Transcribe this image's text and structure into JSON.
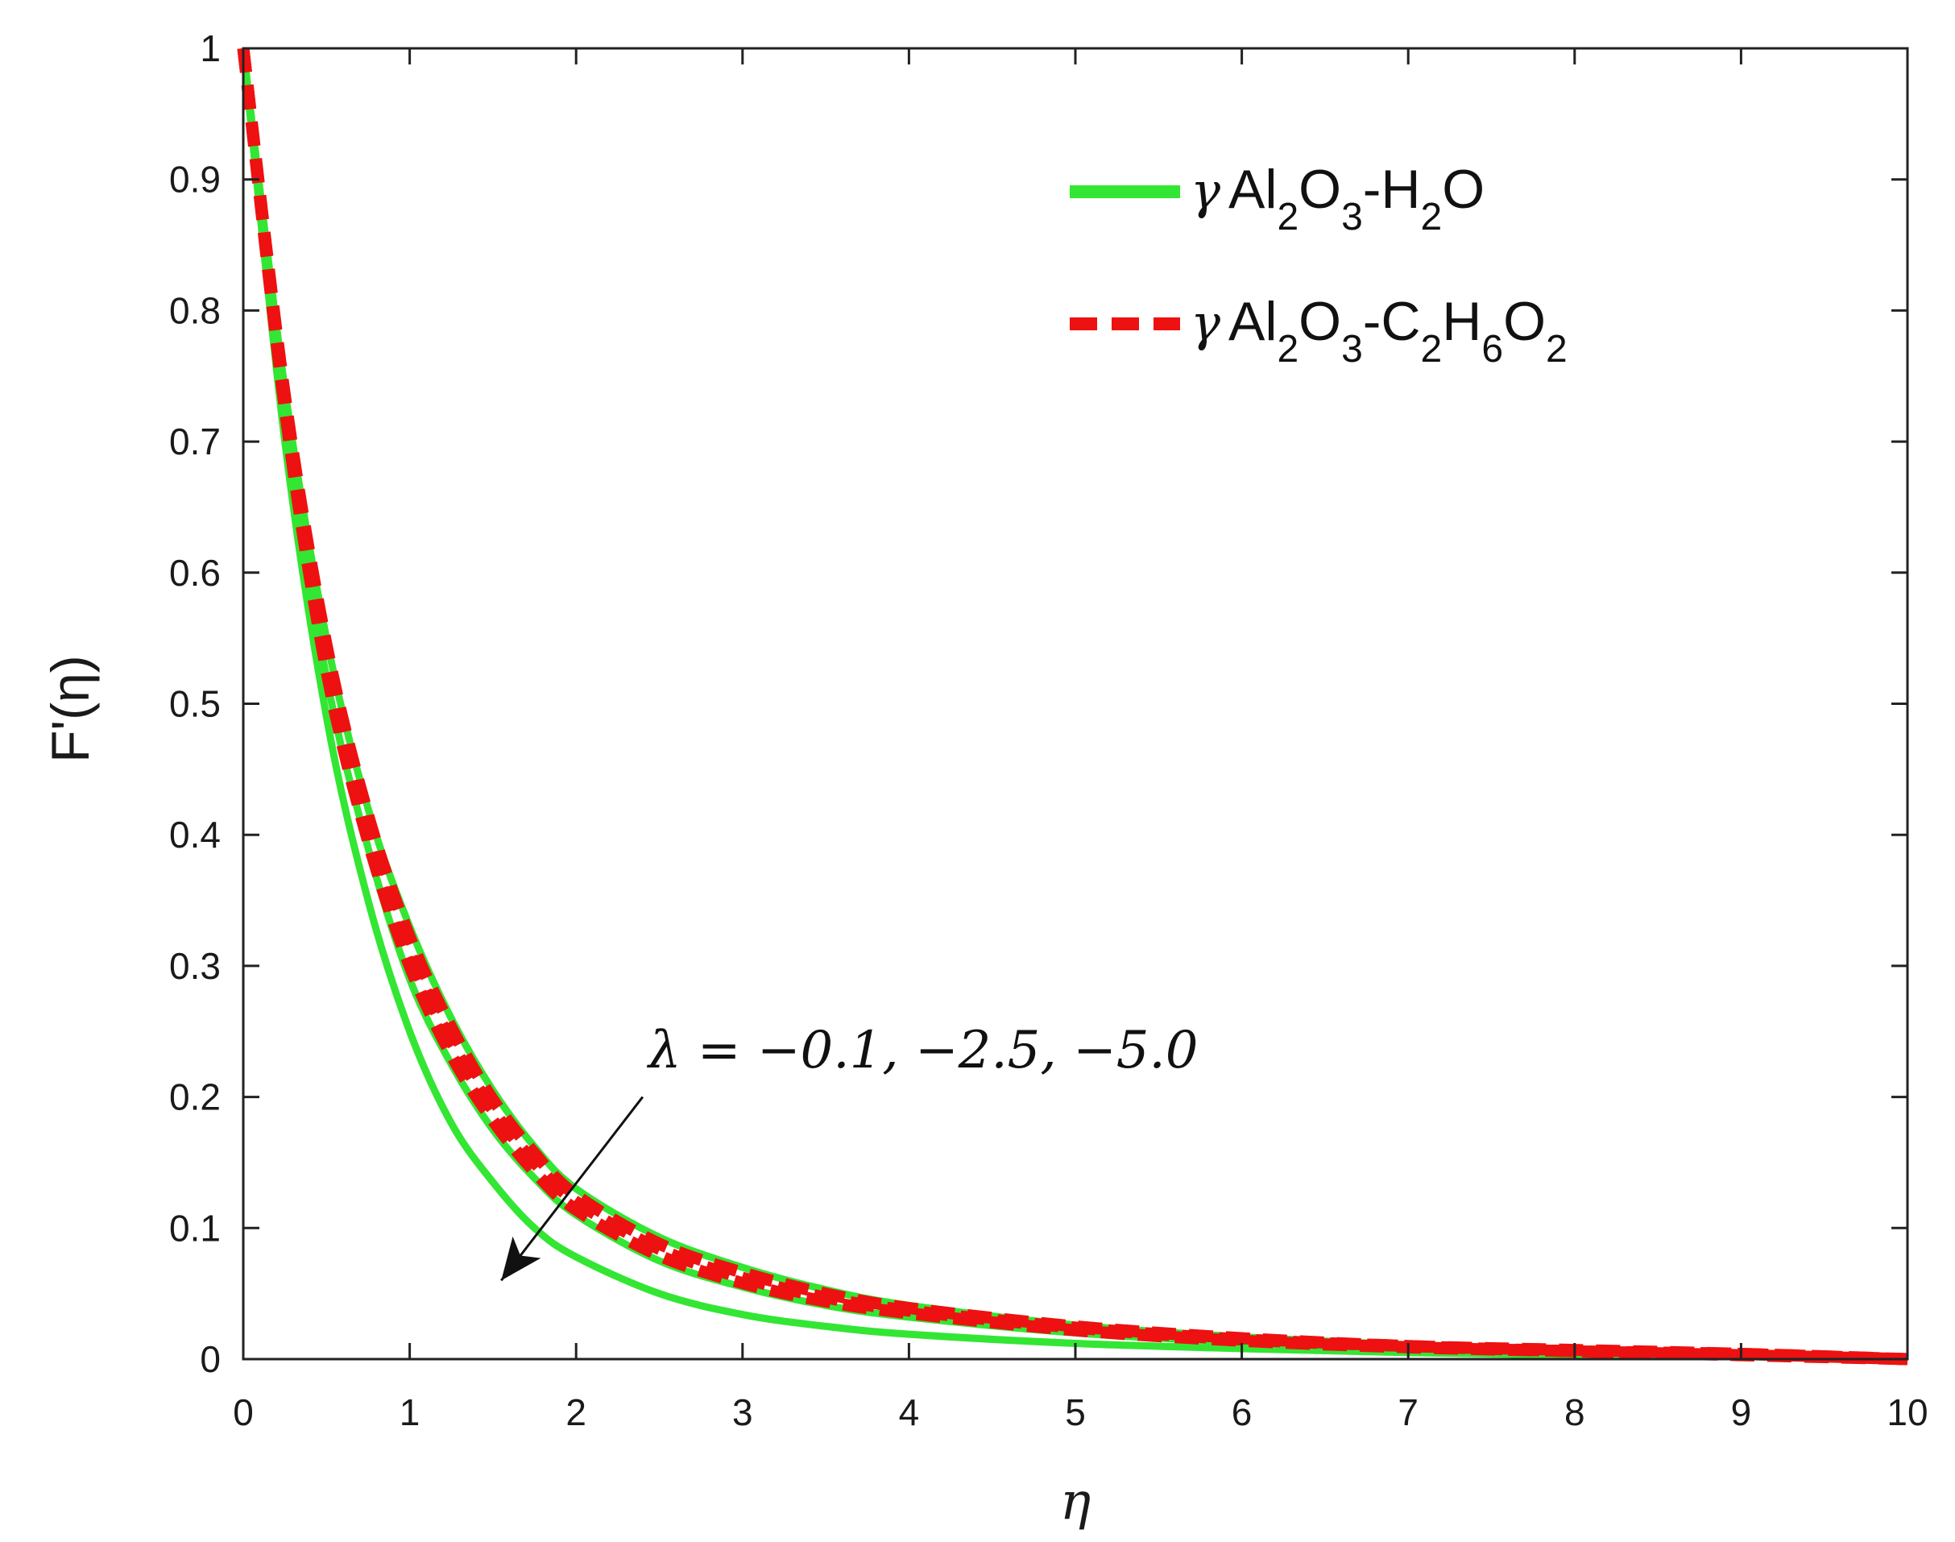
{
  "chart_data": {
    "type": "line",
    "xlabel": "η",
    "ylabel": "F'(η)",
    "xlim": [
      0,
      10
    ],
    "ylim": [
      0,
      1
    ],
    "x_ticks": [
      "0",
      "1",
      "2",
      "3",
      "4",
      "5",
      "6",
      "7",
      "8",
      "9",
      "10"
    ],
    "y_ticks": [
      "0",
      "0.1",
      "0.2",
      "0.3",
      "0.4",
      "0.5",
      "0.6",
      "0.7",
      "0.8",
      "0.9",
      "1"
    ],
    "grid": false,
    "legend": {
      "placement": "top-right",
      "entries": [
        {
          "greek": "γ",
          "text": "Al2O3-H2O",
          "style": "solid",
          "color": "#33e633"
        },
        {
          "greek": "γ",
          "text": "Al2O3-C2H6O2",
          "style": "dashed",
          "color": "#ee1111"
        }
      ]
    },
    "annotation": {
      "text": "λ = −0.1, −2.5, −5.0",
      "arrow": {
        "from": [
          2.4,
          0.2
        ],
        "to": [
          1.55,
          0.06
        ]
      }
    },
    "x": [
      0,
      0.25,
      0.5,
      0.75,
      1,
      1.25,
      1.5,
      1.75,
      2,
      2.5,
      3,
      3.5,
      4,
      5,
      6,
      7,
      8,
      9,
      10
    ],
    "series": [
      {
        "group": "γ Al2O3-H2O",
        "lambda": "-0.1",
        "style": "solid",
        "color": "#33e633",
        "values": [
          1,
          0.74,
          0.55,
          0.42,
          0.33,
          0.26,
          0.205,
          0.162,
          0.13,
          0.093,
          0.07,
          0.053,
          0.041,
          0.026,
          0.017,
          0.011,
          0.007,
          0.004,
          0.0
        ]
      },
      {
        "group": "γ Al2O3-H2O",
        "lambda": "-2.5",
        "style": "solid",
        "color": "#33e633",
        "values": [
          1,
          0.72,
          0.52,
          0.39,
          0.29,
          0.225,
          0.175,
          0.138,
          0.11,
          0.075,
          0.055,
          0.041,
          0.032,
          0.02,
          0.013,
          0.009,
          0.006,
          0.003,
          0.0
        ]
      },
      {
        "group": "γ Al2O3-H2O",
        "lambda": "-5.0",
        "style": "solid",
        "color": "#33e633",
        "values": [
          1,
          0.7,
          0.49,
          0.35,
          0.25,
          0.18,
          0.135,
          0.1,
          0.078,
          0.05,
          0.034,
          0.025,
          0.019,
          0.012,
          0.008,
          0.005,
          0.003,
          0.002,
          0.0
        ]
      },
      {
        "group": "γ Al2O3-C2H6O2",
        "lambda": "-0.1",
        "style": "dashed",
        "color": "#ee1111",
        "values": [
          1,
          0.735,
          0.545,
          0.415,
          0.322,
          0.253,
          0.198,
          0.157,
          0.125,
          0.088,
          0.066,
          0.05,
          0.039,
          0.025,
          0.016,
          0.01,
          0.007,
          0.004,
          0.0
        ]
      },
      {
        "group": "γ Al2O3-C2H6O2",
        "lambda": "-2.5",
        "style": "dashed",
        "color": "#ee1111",
        "values": [
          1,
          0.73,
          0.535,
          0.405,
          0.31,
          0.242,
          0.19,
          0.15,
          0.12,
          0.084,
          0.062,
          0.047,
          0.037,
          0.024,
          0.015,
          0.01,
          0.006,
          0.004,
          0.0
        ]
      },
      {
        "group": "γ Al2O3-C2H6O2",
        "lambda": "-5.0",
        "style": "dashed",
        "color": "#ee1111",
        "values": [
          1,
          0.725,
          0.525,
          0.395,
          0.3,
          0.232,
          0.182,
          0.143,
          0.114,
          0.079,
          0.058,
          0.044,
          0.035,
          0.022,
          0.014,
          0.009,
          0.006,
          0.003,
          0.0
        ]
      }
    ]
  }
}
